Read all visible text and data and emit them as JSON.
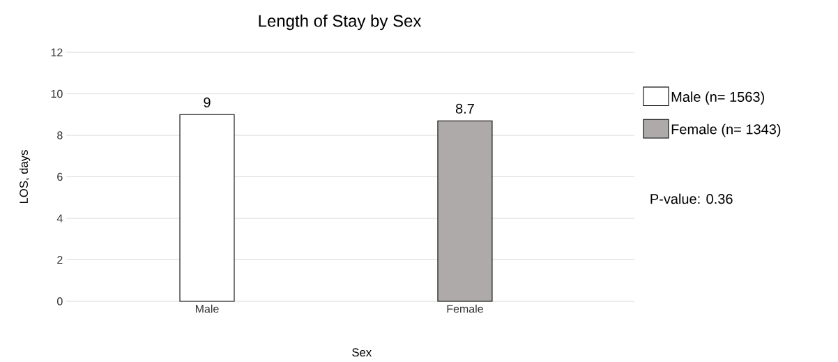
{
  "chart_data": {
    "type": "bar",
    "title": "Length of Stay by Sex",
    "xlabel": "Sex",
    "ylabel": "LOS, days",
    "categories": [
      "Male",
      "Female"
    ],
    "series": [
      {
        "name": "Male (n= 1563)",
        "color": "#ffffff",
        "values": [
          9,
          null
        ]
      },
      {
        "name": "Female (n= 1343)",
        "color": "#aeaaaa",
        "values": [
          null,
          8.7
        ]
      }
    ],
    "ylim": [
      0,
      12
    ],
    "yticks": [
      0,
      2,
      4,
      6,
      8,
      10,
      12
    ],
    "grid": "y",
    "legend": "right",
    "data_labels": true,
    "annotations": [
      "P-value: 0.36"
    ]
  }
}
